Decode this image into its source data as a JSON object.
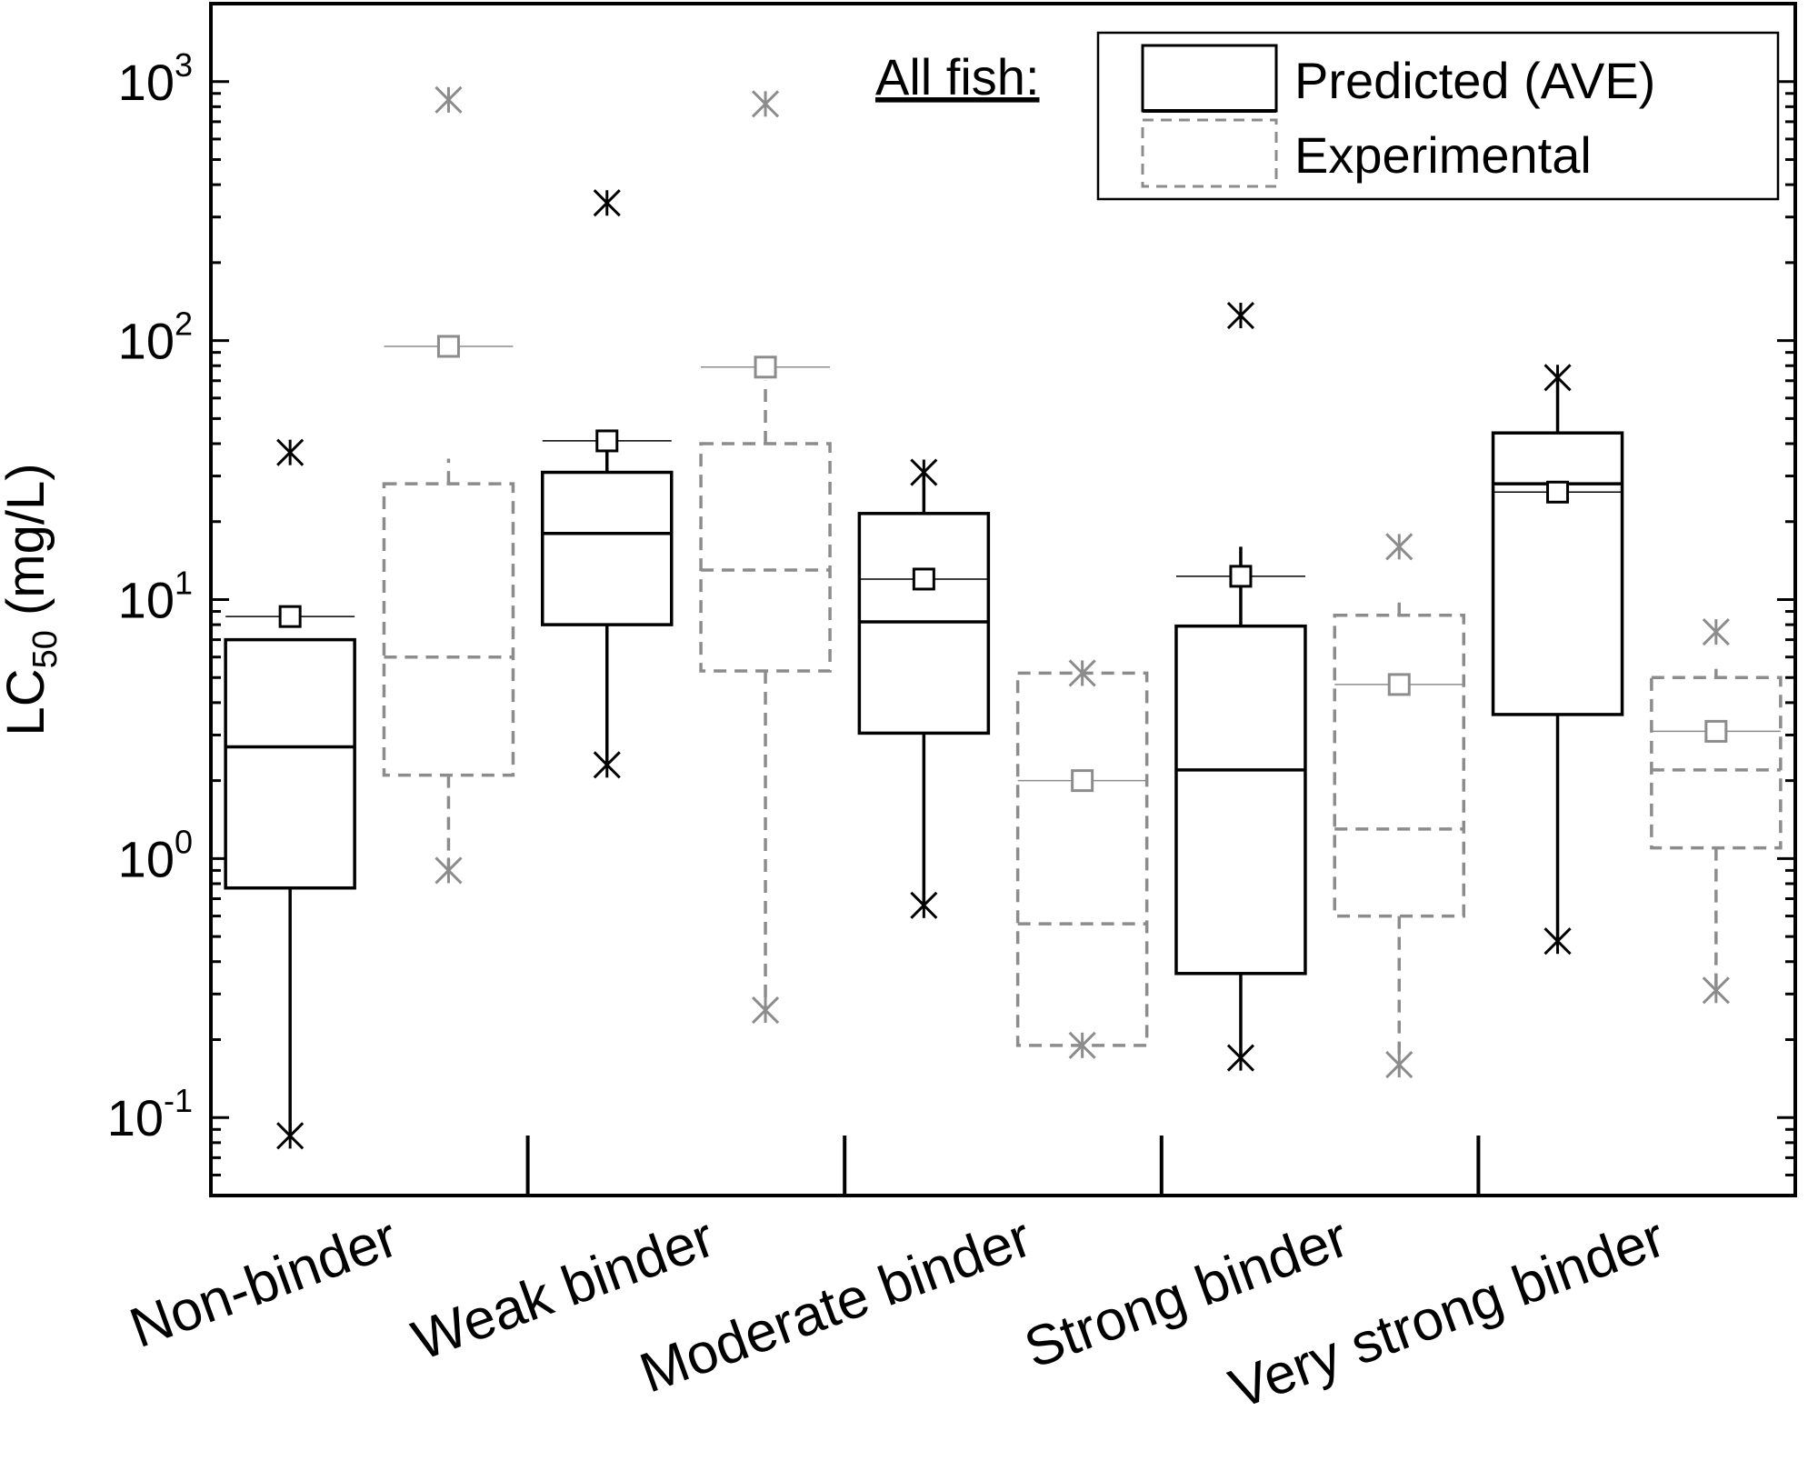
{
  "chart_data": {
    "type": "box",
    "ylabel": {
      "main": "LC",
      "sub": "50",
      "unit": " (mg/L)"
    },
    "yscale": "log",
    "ylim": [
      0.05,
      2000
    ],
    "yticks": [
      {
        "value": 0.1,
        "base": "10",
        "exp": "-1"
      },
      {
        "value": 1,
        "base": "10",
        "exp": "0"
      },
      {
        "value": 10,
        "base": "10",
        "exp": "1"
      },
      {
        "value": 100,
        "base": "10",
        "exp": "2"
      },
      {
        "value": 1000,
        "base": "10",
        "exp": "3"
      }
    ],
    "categories": [
      "Non-binder",
      "Weak binder",
      "Moderate binder",
      "Strong binder",
      "Very strong binder"
    ],
    "legend": {
      "title": "All fish:",
      "entries": [
        "Predicted (AVE)",
        "Experimental"
      ],
      "position": "top-right"
    },
    "colors": {
      "predicted": "#000000",
      "experimental": "#8c8c8c"
    },
    "series": [
      {
        "name": "Predicted (AVE)",
        "boxes": [
          {
            "category": "Non-binder",
            "q1": 0.77,
            "median": 2.7,
            "q3": 7.0,
            "whisker_low": 0.085,
            "whisker_high": 7.0,
            "mean": 8.6,
            "min": 0.085,
            "max": 37
          },
          {
            "category": "Weak binder",
            "q1": 8.0,
            "median": 18,
            "q3": 31,
            "whisker_low": 2.3,
            "whisker_high": 41,
            "mean": 41,
            "min": 2.3,
            "max": 340
          },
          {
            "category": "Moderate binder",
            "q1": 3.05,
            "median": 8.2,
            "q3": 21.5,
            "whisker_low": 0.66,
            "whisker_high": 31,
            "mean": 12,
            "min": 0.66,
            "max": 31
          },
          {
            "category": "Strong binder",
            "q1": 0.36,
            "median": 2.2,
            "q3": 7.9,
            "whisker_low": 0.17,
            "whisker_high": 16,
            "mean": 12.3,
            "min": 0.17,
            "max": 125
          },
          {
            "category": "Very strong binder",
            "q1": 3.6,
            "median": 28,
            "q3": 44,
            "whisker_low": 0.48,
            "whisker_high": 72,
            "mean": 26,
            "min": 0.48,
            "max": 72
          }
        ]
      },
      {
        "name": "Experimental",
        "boxes": [
          {
            "category": "Non-binder",
            "q1": 2.1,
            "median": 6.0,
            "q3": 28,
            "whisker_low": 0.9,
            "whisker_high": 35,
            "mean": 95,
            "min": 0.9,
            "max": 850
          },
          {
            "category": "Weak binder",
            "q1": 5.3,
            "median": 13,
            "q3": 40,
            "whisker_low": 0.26,
            "whisker_high": 70,
            "mean": 79,
            "min": 0.26,
            "max": 820
          },
          {
            "category": "Moderate binder",
            "q1": 0.19,
            "median": 0.56,
            "q3": 5.2,
            "whisker_low": 0.19,
            "whisker_high": 5.2,
            "mean": 2.0,
            "min": 0.19,
            "max": 5.2
          },
          {
            "category": "Strong binder",
            "q1": 0.6,
            "median": 1.3,
            "q3": 8.7,
            "whisker_low": 0.16,
            "whisker_high": 9.8,
            "mean": 4.7,
            "min": 0.16,
            "max": 16
          },
          {
            "category": "Very strong binder",
            "q1": 1.1,
            "median": 2.2,
            "q3": 5.0,
            "whisker_low": 0.31,
            "whisker_high": 5.4,
            "mean": 3.1,
            "min": 0.31,
            "max": 7.5
          }
        ]
      }
    ]
  }
}
